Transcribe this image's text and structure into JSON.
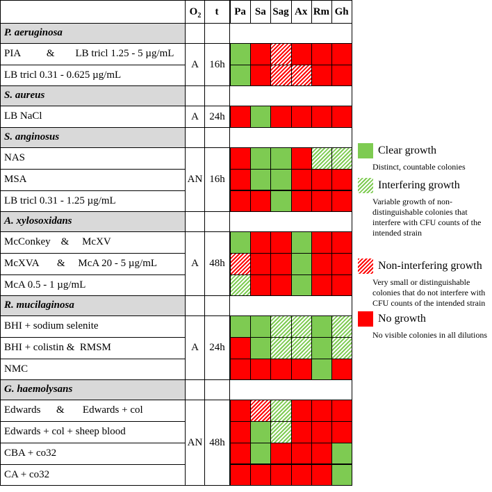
{
  "header": {
    "o2": "O",
    "o2_sub": "2",
    "t": "t",
    "strains": [
      "Pa",
      "Sa",
      "Sag",
      "Ax",
      "Rm",
      "Gh"
    ]
  },
  "sections": [
    {
      "name": "P. aeruginosa",
      "o2": "A",
      "t": "16h",
      "rows": [
        {
          "label": "PIA          &        LB tricl 1.25 - 5 µg/mL",
          "cells": [
            "G",
            "R",
            "RH",
            "R",
            "R",
            "R"
          ]
        },
        {
          "label": "LB tricl 0.31 - 0.625 µg/mL",
          "cells": [
            "G",
            "R",
            "RH",
            "RH",
            "R",
            "R"
          ]
        }
      ]
    },
    {
      "name": "S. aureus",
      "o2": "A",
      "t": "24h",
      "rows": [
        {
          "label": "LB NaCl",
          "cells": [
            "R",
            "G",
            "R",
            "R",
            "R",
            "R"
          ]
        }
      ]
    },
    {
      "name": "S. anginosus",
      "o2": "AN",
      "t": "16h",
      "rows": [
        {
          "label": "NAS",
          "cells": [
            "R",
            "G",
            "G",
            "R",
            "GH",
            "GH"
          ]
        },
        {
          "label": "MSA",
          "cells": [
            "R",
            "G",
            "G",
            "R",
            "R",
            "R"
          ]
        },
        {
          "label": "LB tricl 0.31 - 1.25 µg/mL",
          "cells": [
            "R",
            "R",
            "G",
            "R",
            "R",
            "R"
          ]
        }
      ]
    },
    {
      "name": "A. xylosoxidans",
      "o2": "A",
      "t": "48h",
      "rows": [
        {
          "label": "McConkey    &     McXV",
          "cells": [
            "G",
            "R",
            "R",
            "G",
            "R",
            "R"
          ]
        },
        {
          "label": "McXVA       &     McA 20 - 5 µg/mL",
          "cells": [
            "RH",
            "R",
            "R",
            "G",
            "R",
            "R"
          ]
        },
        {
          "label": "McA 0.5 - 1 µg/mL",
          "cells": [
            "GH",
            "R",
            "R",
            "G",
            "R",
            "R"
          ]
        }
      ]
    },
    {
      "name": "R. mucilaginosa",
      "o2": "A",
      "t": "24h",
      "rows": [
        {
          "label": "BHI + sodium selenite",
          "cells": [
            "G",
            "G",
            "GH",
            "GH",
            "G",
            "GH"
          ]
        },
        {
          "label": "BHI + colistin &  RMSM",
          "cells": [
            "R",
            "G",
            "GH",
            "GH",
            "G",
            "GH"
          ]
        },
        {
          "label": "NMC",
          "cells": [
            "R",
            "R",
            "R",
            "R",
            "G",
            "R"
          ]
        }
      ]
    },
    {
      "name": "G. haemolysans",
      "o2": "AN",
      "t": "48h",
      "rows": [
        {
          "label": "Edwards      &       Edwards + col",
          "cells": [
            "R",
            "RH",
            "GH",
            "R",
            "R",
            "R"
          ]
        },
        {
          "label": "Edwards + col + sheep blood",
          "cells": [
            "R",
            "G",
            "GH",
            "R",
            "R",
            "R"
          ]
        },
        {
          "label": "CBA + co32",
          "cells": [
            "R",
            "G",
            "R",
            "R",
            "R",
            "G"
          ]
        },
        {
          "label": "CA + co32",
          "cells": [
            "R",
            "R",
            "R",
            "R",
            "R",
            "G"
          ]
        }
      ]
    }
  ],
  "legend": [
    {
      "key": "G",
      "title": "Clear growth",
      "desc": "Distinct, countable colonies",
      "color": "#7ecb52"
    },
    {
      "key": "GH",
      "title": "Interfering growth",
      "desc": "Variable growth of non-distinguishable colonies that interfere with CFU counts of the intended strain",
      "color": "#7ecb52"
    },
    {
      "key": "RH",
      "title": "Non-interfering growth",
      "desc": "Very small or distinguishable colonies that do not interfere with CFU counts of the intended strain",
      "color": "#ff0000"
    },
    {
      "key": "R",
      "title": "No growth",
      "desc": "No visible colonies in all dilutions",
      "color": "#ff0000"
    }
  ]
}
